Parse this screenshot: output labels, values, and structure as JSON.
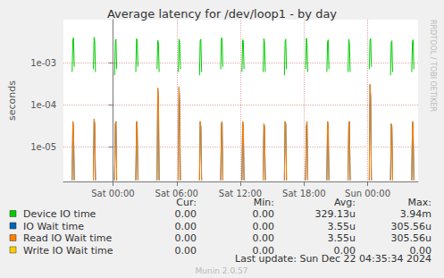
{
  "chart_data": {
    "type": "line",
    "title": "Average latency for /dev/loop1 - by day",
    "ylabel": "seconds",
    "log": "y",
    "grid": true,
    "legend": "bottom",
    "watermark": "RRDTOOL / TOBI OETIKER",
    "last_update": "Last update: Sun Dec 22 04:35:34 2024",
    "footer": "Munin 2.0.57",
    "stat_headers": [
      "Cur:",
      "Min:",
      "Avg:",
      "Max:"
    ],
    "xlim": [
      -4.67,
      28.75
    ],
    "xticks": [
      {
        "value": 0,
        "label": "Sat 00:00"
      },
      {
        "value": 6,
        "label": "Sat 06:00"
      },
      {
        "value": 12,
        "label": "Sat 12:00"
      },
      {
        "value": 18,
        "label": "Sat 18:00"
      },
      {
        "value": 24,
        "label": "Sun 00:00"
      }
    ],
    "ylim": [
      1.5e-06,
      0.0105
    ],
    "yticks": [
      {
        "value": 1e-05,
        "label": "1e-05"
      },
      {
        "value": 0.0001,
        "label": "1e-04"
      },
      {
        "value": 0.001,
        "label": "1e-03"
      }
    ],
    "x": [
      -3.85,
      -3.78,
      -3.72,
      -3.65,
      -3.25,
      -1.85,
      -1.78,
      -1.72,
      -1.65,
      -1.25,
      0.15,
      0.22,
      0.28,
      0.35,
      0.75,
      2.15,
      2.22,
      2.28,
      2.35,
      2.75,
      4.15,
      4.22,
      4.28,
      4.35,
      4.75,
      6.15,
      6.22,
      6.28,
      6.35,
      6.75,
      8.15,
      8.22,
      8.28,
      8.35,
      8.75,
      10.15,
      10.22,
      10.28,
      10.35,
      10.75,
      12.15,
      12.22,
      12.28,
      12.35,
      12.75,
      14.15,
      14.22,
      14.28,
      14.35,
      14.75,
      16.15,
      16.22,
      16.28,
      16.35,
      16.75,
      18.15,
      18.22,
      18.28,
      18.35,
      18.75,
      20.15,
      20.22,
      20.28,
      20.35,
      20.75,
      22.15,
      22.22,
      22.28,
      22.35,
      22.75,
      24.15,
      24.22,
      24.28,
      24.35,
      24.75,
      26.15,
      26.22,
      26.28,
      26.35,
      26.75,
      28.15,
      28.22,
      28.28,
      28.35,
      28.75
    ],
    "series": [
      {
        "name": "Device IO time",
        "color": "#00cc00",
        "stats": [
          "0.00",
          "0.00",
          "329.13u",
          "3.94m"
        ],
        "values": [
          0.0006,
          0.0035,
          0.0039,
          0.0008,
          null,
          0.0007,
          0.004,
          0.0033,
          0.0006,
          null,
          0.0005,
          0.0031,
          0.0036,
          0.0007,
          null,
          0.0006,
          0.0037,
          0.0034,
          0.0008,
          null,
          0.0007,
          0.0034,
          0.003,
          0.0006,
          null,
          0.0006,
          0.0036,
          0.0032,
          0.0007,
          null,
          0.0005,
          0.0033,
          0.0036,
          0.0006,
          null,
          0.0007,
          0.0039,
          0.0038,
          0.0008,
          null,
          0.0006,
          0.0035,
          0.0033,
          0.0007,
          null,
          0.0006,
          0.0037,
          0.0031,
          0.0006,
          null,
          0.0005,
          0.0032,
          0.0036,
          0.0007,
          null,
          0.0007,
          0.0038,
          0.003,
          0.0006,
          null,
          0.0006,
          0.0031,
          0.0035,
          0.0007,
          null,
          0.0006,
          0.0036,
          0.0029,
          0.0006,
          null,
          0.0007,
          0.0034,
          0.0037,
          0.0008,
          null,
          0.0005,
          0.003,
          0.0033,
          0.0006,
          null,
          0.0006,
          0.0032,
          0.0035,
          0.0007,
          null
        ]
      },
      {
        "name": "IO Wait time",
        "color": "#0066b3",
        "stats": [
          "0.00",
          "0.00",
          "3.55u",
          "305.56u"
        ],
        "values": [
          1.6e-06,
          4e-05,
          3e-05,
          1.6e-06,
          null,
          1.6e-06,
          4.5e-05,
          3.5e-05,
          1.6e-06,
          null,
          1.6e-06,
          3.5e-05,
          4e-05,
          1.6e-06,
          null,
          1.6e-06,
          4e-05,
          3e-05,
          1.6e-06,
          null,
          1.6e-06,
          0.00025,
          0.00015,
          1.6e-06,
          null,
          1.6e-06,
          0.00026,
          0.00012,
          1.6e-06,
          null,
          1.6e-06,
          4e-05,
          3e-05,
          1.6e-06,
          null,
          1.6e-06,
          3.5e-05,
          4e-05,
          1.6e-06,
          null,
          1.6e-06,
          4e-05,
          3e-05,
          1.6e-06,
          null,
          1.6e-06,
          3.5e-05,
          3e-05,
          1.6e-06,
          null,
          1.6e-06,
          4e-05,
          3.5e-05,
          1.6e-06,
          null,
          1.6e-06,
          3e-05,
          4e-05,
          1.6e-06,
          null,
          1.6e-06,
          4e-05,
          3e-05,
          1.6e-06,
          null,
          1.6e-06,
          3.5e-05,
          4e-05,
          1.6e-06,
          null,
          1.6e-06,
          0.0003,
          0.00015,
          1.6e-06,
          null,
          1.6e-06,
          3.5e-05,
          3e-05,
          1.6e-06,
          null,
          1.6e-06,
          4e-05,
          3e-05,
          1.6e-06,
          null
        ]
      },
      {
        "name": "Read IO Wait time",
        "color": "#ff8000",
        "stats": [
          "0.00",
          "0.00",
          "3.55u",
          "305.56u"
        ],
        "values": [
          1.6e-06,
          4e-05,
          3e-05,
          1.6e-06,
          null,
          1.6e-06,
          4.5e-05,
          3.5e-05,
          1.6e-06,
          null,
          1.6e-06,
          3.5e-05,
          4e-05,
          1.6e-06,
          null,
          1.6e-06,
          4e-05,
          3e-05,
          1.6e-06,
          null,
          1.6e-06,
          0.00025,
          0.00015,
          1.6e-06,
          null,
          1.6e-06,
          0.00026,
          0.00012,
          1.6e-06,
          null,
          1.6e-06,
          4e-05,
          3e-05,
          1.6e-06,
          null,
          1.6e-06,
          3.5e-05,
          4e-05,
          1.6e-06,
          null,
          1.6e-06,
          4e-05,
          3e-05,
          1.6e-06,
          null,
          1.6e-06,
          3.5e-05,
          3e-05,
          1.6e-06,
          null,
          1.6e-06,
          4e-05,
          3.5e-05,
          1.6e-06,
          null,
          1.6e-06,
          3e-05,
          4e-05,
          1.6e-06,
          null,
          1.6e-06,
          4e-05,
          3e-05,
          1.6e-06,
          null,
          1.6e-06,
          3.5e-05,
          4e-05,
          1.6e-06,
          null,
          1.6e-06,
          0.0003,
          0.00015,
          1.6e-06,
          null,
          1.6e-06,
          3.5e-05,
          3e-05,
          1.6e-06,
          null,
          1.6e-06,
          4e-05,
          3e-05,
          1.6e-06,
          null
        ]
      },
      {
        "name": "Write IO Wait time",
        "color": "#ffcc00",
        "stats": [
          "0.00",
          "0.00",
          "0.00",
          "0.00"
        ],
        "values": [
          null,
          null,
          null,
          null,
          null,
          null,
          null,
          null,
          null,
          null,
          null,
          null,
          null,
          null,
          null,
          null,
          null,
          null,
          null,
          null,
          null,
          null,
          null,
          null,
          null,
          null,
          null,
          null,
          null,
          null,
          null,
          null,
          null,
          null,
          null,
          null,
          null,
          null,
          null,
          null,
          null,
          null,
          null,
          null,
          null,
          null,
          null,
          null,
          null,
          null,
          null,
          null,
          null,
          null,
          null,
          null,
          null,
          null,
          null,
          null,
          null,
          null,
          null,
          null,
          null,
          null,
          null,
          null,
          null,
          null,
          null,
          null,
          null,
          null,
          null,
          null,
          null,
          null,
          null,
          null,
          null,
          null,
          null,
          null,
          null
        ]
      }
    ]
  }
}
